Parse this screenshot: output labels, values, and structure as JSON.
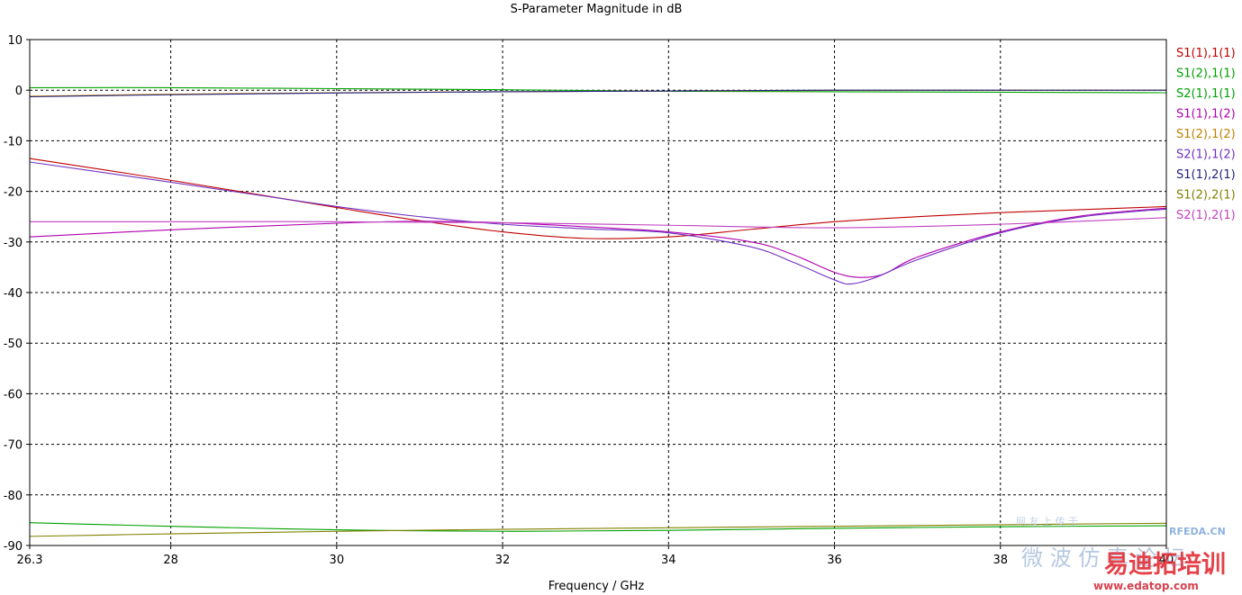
{
  "chart_data": {
    "type": "line",
    "title": "S-Parameter Magnitude in dB",
    "xlabel": "Frequency / GHz",
    "ylabel": "",
    "xlim": [
      26.3,
      40
    ],
    "ylim": [
      -90,
      10
    ],
    "x_ticks": [
      26.3,
      28,
      30,
      32,
      34,
      36,
      38,
      40
    ],
    "x_tick_labels": [
      "26.3",
      "28",
      "30",
      "32",
      "34",
      "36",
      "38",
      "40"
    ],
    "y_ticks": [
      10,
      0,
      -10,
      -20,
      -30,
      -40,
      -50,
      -60,
      -70,
      -80,
      -90
    ],
    "y_tick_labels": [
      "10",
      "0",
      "-10",
      "-20",
      "-30",
      "-40",
      "-50",
      "-60",
      "-70",
      "-80",
      "-90"
    ],
    "grid": true,
    "legend_position": "right",
    "series": [
      {
        "name": "S1(1),1(1)",
        "color": "#c00000",
        "points": [
          [
            26.3,
            -13.5
          ],
          [
            28,
            -17.8
          ],
          [
            30,
            -23.2
          ],
          [
            31,
            -25.8
          ],
          [
            32,
            -28.0
          ],
          [
            33,
            -29.3
          ],
          [
            34,
            -29.0
          ],
          [
            35,
            -27.5
          ],
          [
            36,
            -26.0
          ],
          [
            37,
            -25.0
          ],
          [
            38,
            -24.2
          ],
          [
            39,
            -23.6
          ],
          [
            40,
            -23.0
          ]
        ]
      },
      {
        "name": "S1(2),1(1)",
        "color": "#00a000",
        "points": [
          [
            26.3,
            -85.5
          ],
          [
            28,
            -86.2
          ],
          [
            30,
            -86.9
          ],
          [
            32,
            -87.2
          ],
          [
            34,
            -87.0
          ],
          [
            36,
            -86.6
          ],
          [
            38,
            -86.3
          ],
          [
            40,
            -86.1
          ]
        ]
      },
      {
        "name": "S2(1),1(1)",
        "color": "#00a000",
        "points": [
          [
            26.3,
            0.5
          ],
          [
            28,
            0.5
          ],
          [
            30,
            0.3
          ],
          [
            32,
            0.1
          ],
          [
            34,
            -0.2
          ],
          [
            36,
            -0.3
          ],
          [
            38,
            -0.4
          ],
          [
            40,
            -0.5
          ]
        ]
      },
      {
        "name": "S1(1),1(2)",
        "color": "#b000b0",
        "points": [
          [
            26.3,
            -29.0
          ],
          [
            28,
            -27.6
          ],
          [
            30,
            -26.3
          ],
          [
            31,
            -25.9
          ],
          [
            32,
            -26.2
          ],
          [
            33,
            -27.0
          ],
          [
            34,
            -28.0
          ],
          [
            35,
            -30.0
          ],
          [
            35.5,
            -32.5
          ],
          [
            36,
            -36.0
          ],
          [
            36.3,
            -37.0
          ],
          [
            36.6,
            -36.3
          ],
          [
            37,
            -33.0
          ],
          [
            38,
            -28.0
          ],
          [
            39,
            -24.8
          ],
          [
            40,
            -23.3
          ]
        ]
      },
      {
        "name": "S1(2),1(2)",
        "color": "#c08000",
        "points": [
          [
            26.3,
            -1.2
          ],
          [
            28,
            -0.8
          ],
          [
            30,
            -0.5
          ],
          [
            32,
            -0.3
          ],
          [
            34,
            -0.15
          ],
          [
            36,
            -0.05
          ],
          [
            38,
            0
          ],
          [
            40,
            0
          ]
        ]
      },
      {
        "name": "S2(1),1(2)",
        "color": "#7030c0",
        "points": [
          [
            26.3,
            -14.2
          ],
          [
            28,
            -18.2
          ],
          [
            30,
            -23.0
          ],
          [
            31,
            -25.0
          ],
          [
            32,
            -26.5
          ],
          [
            33,
            -27.4
          ],
          [
            34,
            -28.2
          ],
          [
            35,
            -31.0
          ],
          [
            35.5,
            -34.0
          ],
          [
            36,
            -37.5
          ],
          [
            36.2,
            -38.3
          ],
          [
            36.5,
            -37.0
          ],
          [
            37,
            -33.5
          ],
          [
            38,
            -28.2
          ],
          [
            39,
            -25.0
          ],
          [
            40,
            -23.5
          ]
        ]
      },
      {
        "name": "S1(1),2(1)",
        "color": "#202080",
        "points": [
          [
            26.3,
            -1.3
          ],
          [
            28,
            -0.9
          ],
          [
            30,
            -0.55
          ],
          [
            32,
            -0.3
          ],
          [
            34,
            -0.15
          ],
          [
            36,
            0
          ],
          [
            38,
            0
          ],
          [
            40,
            0
          ]
        ]
      },
      {
        "name": "S1(2),2(1)",
        "color": "#808000",
        "points": [
          [
            26.3,
            -88.2
          ],
          [
            28,
            -87.7
          ],
          [
            30,
            -87.2
          ],
          [
            32,
            -86.8
          ],
          [
            34,
            -86.5
          ],
          [
            36,
            -86.2
          ],
          [
            38,
            -85.9
          ],
          [
            40,
            -85.6
          ]
        ]
      },
      {
        "name": "S2(1),2(1)",
        "color": "#c040c0",
        "points": [
          [
            26.3,
            -26.0
          ],
          [
            28,
            -26.0
          ],
          [
            30,
            -26.0
          ],
          [
            32,
            -26.2
          ],
          [
            34,
            -26.7
          ],
          [
            36,
            -27.2
          ],
          [
            38,
            -26.5
          ],
          [
            40,
            -25.2
          ]
        ]
      }
    ]
  },
  "watermarks": {
    "site_cn": "微 波 仿 真 论 坛",
    "site_en": "RFEDA.CN",
    "brand_cn": "易迪拓培训",
    "url": "www.edatop.com",
    "tagline": "网 友 上 传 于"
  }
}
